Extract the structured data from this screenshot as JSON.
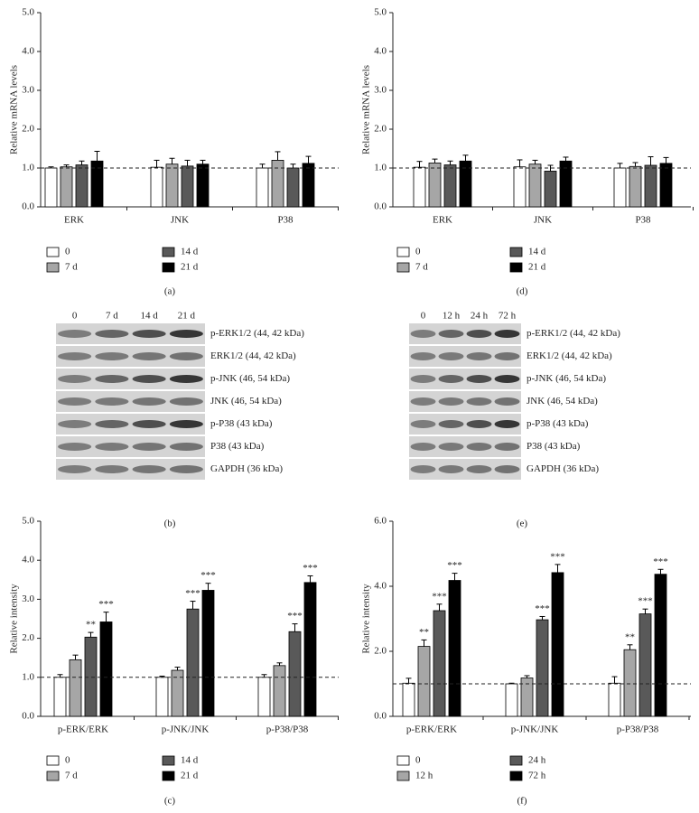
{
  "chart_data": [
    {
      "type": "bar",
      "y_label": "Relative mRNA levels",
      "categories": [
        "ERK",
        "JNK",
        "P38"
      ],
      "series": [
        {
          "name": "0",
          "color": "#ffffff",
          "values": [
            1.0,
            1.02,
            1.0
          ],
          "errors": [
            0.03,
            0.18,
            0.1
          ]
        },
        {
          "name": "7 d",
          "color": "#a6a6a6",
          "values": [
            1.03,
            1.1,
            1.2
          ],
          "errors": [
            0.05,
            0.15,
            0.22
          ]
        },
        {
          "name": "14 d",
          "color": "#595959",
          "values": [
            1.08,
            1.05,
            1.0
          ],
          "errors": [
            0.1,
            0.15,
            0.1
          ]
        },
        {
          "name": "21 d",
          "color": "#000000",
          "values": [
            1.18,
            1.1,
            1.12
          ],
          "errors": [
            0.25,
            0.1,
            0.18
          ]
        }
      ],
      "ylim": [
        0,
        5
      ],
      "yticks": [
        {
          "value": 0,
          "label": "0.0"
        },
        {
          "value": 1,
          "label": "1.0"
        },
        {
          "value": 2,
          "label": "2.0"
        },
        {
          "value": 3,
          "label": "3.0"
        },
        {
          "value": 4,
          "label": "4.0"
        },
        {
          "value": 5,
          "label": "5.0"
        }
      ],
      "reference_line": 1,
      "caption": "(a)"
    },
    {
      "type": "bar",
      "y_label": "Relative mRNA levels",
      "categories": [
        "ERK",
        "JNK",
        "P38"
      ],
      "series": [
        {
          "name": "0",
          "color": "#ffffff",
          "values": [
            1.02,
            1.03,
            1.0
          ],
          "errors": [
            0.15,
            0.18,
            0.12
          ]
        },
        {
          "name": "7 d",
          "color": "#a6a6a6",
          "values": [
            1.13,
            1.1,
            1.04
          ],
          "errors": [
            0.1,
            0.1,
            0.1
          ]
        },
        {
          "name": "14 d",
          "color": "#595959",
          "values": [
            1.08,
            0.92,
            1.07
          ],
          "errors": [
            0.1,
            0.15,
            0.22
          ]
        },
        {
          "name": "21 d",
          "color": "#000000",
          "values": [
            1.18,
            1.18,
            1.12
          ],
          "errors": [
            0.15,
            0.1,
            0.15
          ]
        }
      ],
      "ylim": [
        0,
        5
      ],
      "yticks": [
        {
          "value": 0,
          "label": "0.0"
        },
        {
          "value": 1,
          "label": "1.0"
        },
        {
          "value": 2,
          "label": "2.0"
        },
        {
          "value": 3,
          "label": "3.0"
        },
        {
          "value": 4,
          "label": "4.0"
        },
        {
          "value": 5,
          "label": "5.0"
        }
      ],
      "reference_line": 1,
      "caption": "(d)"
    },
    {
      "type": "bar",
      "y_label": "Relative intensity",
      "categories": [
        "p-ERK/ERK",
        "p-JNK/JNK",
        "p-P38/P38"
      ],
      "series": [
        {
          "name": "0",
          "color": "#ffffff",
          "values": [
            1.0,
            1.0,
            1.0
          ],
          "errors": [
            0.07,
            0.03,
            0.07
          ]
        },
        {
          "name": "7 d",
          "color": "#a6a6a6",
          "values": [
            1.45,
            1.18,
            1.3
          ],
          "errors": [
            0.12,
            0.08,
            0.07
          ]
        },
        {
          "name": "14 d",
          "color": "#595959",
          "values": [
            2.03,
            2.75,
            2.17
          ],
          "errors": [
            0.12,
            0.2,
            0.2
          ],
          "annotations": [
            "**",
            "***",
            "***"
          ]
        },
        {
          "name": "21 d",
          "color": "#000000",
          "values": [
            2.42,
            3.23,
            3.43
          ],
          "errors": [
            0.25,
            0.18,
            0.17
          ],
          "annotations": [
            "***",
            "***",
            "***"
          ]
        }
      ],
      "ylim": [
        0,
        5
      ],
      "yticks": [
        {
          "value": 0,
          "label": "0.0"
        },
        {
          "value": 1,
          "label": "1.0"
        },
        {
          "value": 2,
          "label": "2.0"
        },
        {
          "value": 3,
          "label": "3.0"
        },
        {
          "value": 4,
          "label": "4.0"
        },
        {
          "value": 5,
          "label": "5.0"
        }
      ],
      "reference_line": 1,
      "caption": "(c)"
    },
    {
      "type": "bar",
      "y_label": "Relative intensity",
      "categories": [
        "p-ERK/ERK",
        "p-JNK/JNK",
        "p-P38/P38"
      ],
      "series": [
        {
          "name": "0",
          "color": "#ffffff",
          "values": [
            1.02,
            1.0,
            1.02
          ],
          "errors": [
            0.15,
            0.02,
            0.2
          ]
        },
        {
          "name": "12 h",
          "color": "#a6a6a6",
          "values": [
            2.15,
            1.18,
            2.05
          ],
          "errors": [
            0.2,
            0.07,
            0.15
          ],
          "annotations": [
            "**",
            null,
            "**"
          ]
        },
        {
          "name": "24 h",
          "color": "#595959",
          "values": [
            3.25,
            2.97,
            3.15
          ],
          "errors": [
            0.2,
            0.1,
            0.15
          ],
          "annotations": [
            "***",
            "***",
            "***"
          ]
        },
        {
          "name": "72 h",
          "color": "#000000",
          "values": [
            4.18,
            4.42,
            4.37
          ],
          "errors": [
            0.22,
            0.25,
            0.15
          ],
          "annotations": [
            "***",
            "***",
            "***"
          ]
        }
      ],
      "ylim": [
        0,
        6
      ],
      "yticks": [
        {
          "value": 0,
          "label": "0.0"
        },
        {
          "value": 2,
          "label": "2.0"
        },
        {
          "value": 4,
          "label": "4.0"
        },
        {
          "value": 6,
          "label": "6.0"
        }
      ],
      "reference_line": 1,
      "caption": "(f)"
    }
  ],
  "blots": [
    {
      "lanes": [
        "0",
        "7 d",
        "14 d",
        "21 d"
      ],
      "rows": [
        "p-ERK1/2 (44, 42 kDa)",
        "ERK1/2 (44, 42 kDa)",
        "p-JNK (46, 54 kDa)",
        "JNK (46, 54 kDa)",
        "p-P38 (43 kDa)",
        "P38 (43 kDa)",
        "GAPDH (36 kDa)"
      ],
      "caption": "(b)"
    },
    {
      "lanes": [
        "0",
        "12 h",
        "24 h",
        "72 h"
      ],
      "rows": [
        "p-ERK1/2 (44, 42 kDa)",
        "ERK1/2 (44, 42 kDa)",
        "p-JNK (46, 54 kDa)",
        "JNK (46, 54 kDa)",
        "p-P38 (43 kDa)",
        "P38 (43 kDa)",
        "GAPDH (36 kDa)"
      ],
      "caption": "(e)"
    }
  ]
}
